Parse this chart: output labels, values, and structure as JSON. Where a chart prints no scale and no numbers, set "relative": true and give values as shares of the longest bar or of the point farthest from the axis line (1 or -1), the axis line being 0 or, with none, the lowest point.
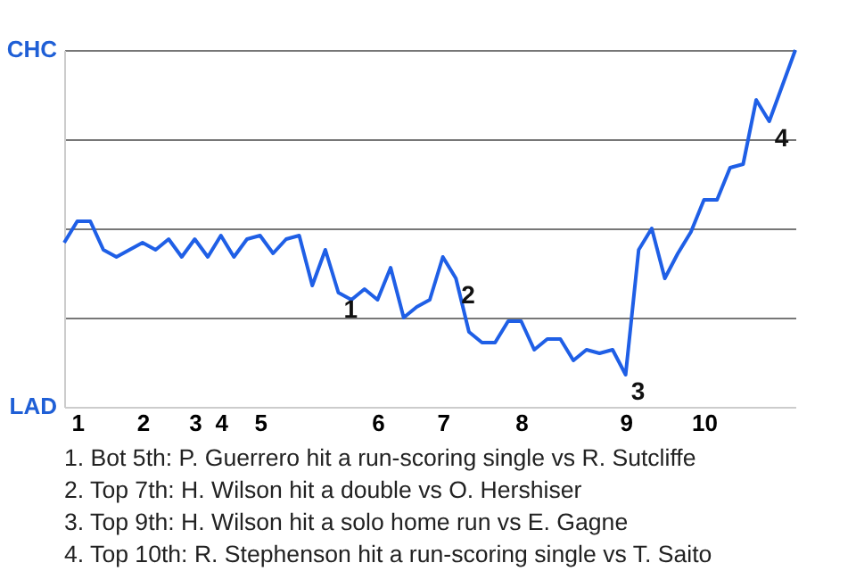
{
  "chart_data": {
    "type": "line",
    "relative": true,
    "grid": "y",
    "marker": "none",
    "categories": [
      null,
      "1",
      null,
      null,
      null,
      null,
      "2",
      null,
      null,
      null,
      "3",
      null,
      "4",
      null,
      null,
      "5",
      null,
      null,
      null,
      null,
      null,
      null,
      null,
      null,
      "6",
      null,
      null,
      null,
      null,
      "7",
      null,
      null,
      null,
      null,
      null,
      "8",
      null,
      null,
      null,
      null,
      null,
      null,
      null,
      "9",
      null,
      null,
      null,
      null,
      null,
      "10",
      null,
      null,
      null,
      null,
      null,
      null,
      null
    ],
    "series": [
      {
        "color": "#1f5fe6",
        "values": [
          0.46,
          0.52,
          0.52,
          0.44,
          0.42,
          0.44,
          0.46,
          0.44,
          0.47,
          0.42,
          0.47,
          0.42,
          0.48,
          0.42,
          0.47,
          0.48,
          0.43,
          0.47,
          0.48,
          0.34,
          0.44,
          0.32,
          0.3,
          0.33,
          0.3,
          0.39,
          0.25,
          0.28,
          0.3,
          0.42,
          0.36,
          0.21,
          0.18,
          0.18,
          0.24,
          0.24,
          0.16,
          0.19,
          0.19,
          0.13,
          0.16,
          0.15,
          0.16,
          0.09,
          0.44,
          0.5,
          0.36,
          0.43,
          0.49,
          0.58,
          0.58,
          0.67,
          0.68,
          0.86,
          0.8,
          0.9,
          1.0
        ]
      }
    ],
    "annotations": [
      "CHC",
      "LAD",
      "1",
      "2",
      "3",
      "4",
      "1. Bot 5th: P. Guerrero hit a run-scoring single vs R. Sutcliffe",
      "2. Top 7th: H. Wilson hit a double vs O. Hershiser",
      "3. Top 9th: H. Wilson hit a solo home run vs E. Gagne",
      "4. Top 10th: R. Stephenson hit a run-scoring single vs T. Saito"
    ]
  }
}
